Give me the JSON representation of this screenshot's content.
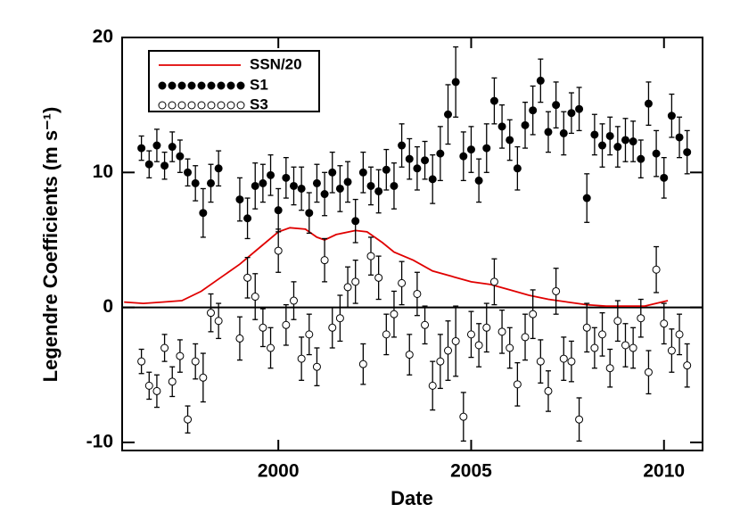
{
  "chart_data": {
    "type": "scatter",
    "xlabel": "Date",
    "ylabel": "Legendre Coefficients (m s⁻¹)",
    "xlim": [
      1995.95,
      2011.0
    ],
    "ylim": [
      -10.6,
      20
    ],
    "xticks": [
      2000,
      2005,
      2010
    ],
    "yticks": [
      -10,
      0,
      10,
      20
    ],
    "zero_line": true,
    "legend": "upper left",
    "line": {
      "name": "SSN/20",
      "color": "#e00000",
      "x": [
        1996.0,
        1996.5,
        1997.0,
        1997.5,
        1998.0,
        1998.5,
        1999.0,
        1999.5,
        2000.0,
        2000.3,
        2000.7,
        2001.0,
        2001.2,
        2001.5,
        2002.0,
        2002.3,
        2002.7,
        2003.0,
        2003.5,
        2004.0,
        2004.5,
        2005.0,
        2005.5,
        2006.0,
        2006.5,
        2007.0,
        2007.5,
        2008.0,
        2008.5,
        2009.0,
        2009.5,
        2010.1
      ],
      "values": [
        0.4,
        0.3,
        0.4,
        0.5,
        1.2,
        2.2,
        3.2,
        4.4,
        5.6,
        5.9,
        5.8,
        5.2,
        5.0,
        5.4,
        5.7,
        5.6,
        4.8,
        4.1,
        3.5,
        2.7,
        2.3,
        1.9,
        1.7,
        1.3,
        0.9,
        0.6,
        0.4,
        0.2,
        0.1,
        0.1,
        0.1,
        0.5
      ]
    },
    "x": [
      1996.45,
      1996.65,
      1996.85,
      1997.05,
      1997.25,
      1997.45,
      1997.65,
      1997.85,
      1998.05,
      1998.25,
      1998.45,
      1999.0,
      1999.2,
      1999.4,
      1999.6,
      1999.8,
      2000.0,
      2000.2,
      2000.4,
      2000.6,
      2000.8,
      2001.0,
      2001.2,
      2001.4,
      2001.6,
      2001.8,
      2002.0,
      2002.2,
      2002.4,
      2002.6,
      2002.8,
      2003.0,
      2003.2,
      2003.4,
      2003.6,
      2003.8,
      2004.0,
      2004.2,
      2004.4,
      2004.6,
      2004.8,
      2005.0,
      2005.2,
      2005.4,
      2005.6,
      2005.8,
      2006.0,
      2006.2,
      2006.4,
      2006.6,
      2006.8,
      2007.0,
      2007.2,
      2007.4,
      2007.6,
      2007.8,
      2008.0,
      2008.2,
      2008.4,
      2008.6,
      2008.8,
      2009.0,
      2009.2,
      2009.4,
      2009.6,
      2009.8,
      2010.0,
      2010.2,
      2010.4,
      2010.6
    ],
    "series": [
      {
        "name": "S1",
        "color": "#000000",
        "filled": true,
        "values": [
          11.8,
          10.6,
          12.0,
          10.5,
          11.9,
          11.2,
          10.0,
          9.2,
          7.0,
          9.2,
          10.3,
          8.0,
          6.6,
          9.0,
          9.2,
          9.8,
          7.2,
          9.6,
          9.0,
          8.8,
          7.0,
          9.2,
          8.4,
          10.0,
          8.8,
          9.3,
          6.4,
          10.0,
          9.0,
          8.6,
          10.2,
          9.0,
          12.0,
          11.0,
          10.3,
          10.9,
          9.5,
          11.4,
          14.3,
          16.7,
          11.2,
          11.7,
          9.4,
          11.8,
          15.3,
          13.4,
          12.4,
          10.3,
          13.5,
          14.6,
          16.8,
          13.0,
          15.0,
          12.9,
          14.4,
          14.7,
          8.1,
          12.8,
          12.0,
          12.7,
          11.9,
          12.4,
          12.3,
          11.0,
          15.1,
          11.4,
          9.6,
          14.2,
          12.6,
          11.5
        ],
        "errors": [
          0.9,
          1.0,
          1.2,
          1.0,
          1.1,
          1.2,
          1.0,
          1.3,
          1.8,
          1.4,
          1.3,
          1.6,
          1.5,
          1.7,
          1.4,
          1.5,
          1.6,
          1.5,
          1.4,
          1.6,
          1.5,
          1.4,
          1.6,
          1.5,
          1.7,
          1.5,
          1.6,
          1.5,
          1.4,
          1.6,
          1.5,
          1.7,
          1.6,
          1.5,
          1.6,
          1.4,
          1.8,
          2.0,
          2.2,
          2.6,
          1.8,
          1.7,
          1.6,
          1.8,
          1.7,
          1.6,
          1.5,
          1.6,
          1.7,
          1.8,
          1.6,
          1.5,
          1.7,
          1.6,
          1.5,
          1.6,
          1.8,
          1.5,
          1.6,
          1.4,
          1.5,
          1.6,
          1.5,
          1.4,
          1.6,
          1.7,
          1.5,
          1.6,
          1.5,
          1.6
        ]
      },
      {
        "name": "S3",
        "color": "#000000",
        "filled": false,
        "values": [
          -4.0,
          -5.8,
          -6.2,
          -3.0,
          -5.5,
          -3.6,
          -8.3,
          -4.0,
          -5.2,
          -0.4,
          -1.0,
          -2.3,
          2.2,
          0.8,
          -1.5,
          -3.0,
          4.2,
          -1.3,
          0.5,
          -3.8,
          -2.0,
          -4.4,
          3.5,
          -1.5,
          -0.8,
          1.5,
          1.9,
          -4.2,
          3.8,
          2.2,
          -2.0,
          -0.5,
          1.8,
          -3.5,
          1.0,
          -1.3,
          -5.8,
          -4.0,
          -3.2,
          -2.5,
          -8.1,
          -2.0,
          -2.8,
          -1.5,
          1.9,
          -1.8,
          -3.0,
          -5.7,
          -2.2,
          -0.5,
          -4.0,
          -6.2,
          1.2,
          -3.8,
          -4.0,
          -8.3,
          -1.5,
          -3.0,
          -2.0,
          -4.5,
          -1.0,
          -2.8,
          -3.0,
          -0.8,
          -4.8,
          2.8,
          -1.2,
          -3.2,
          -2.0,
          -4.3
        ],
        "errors": [
          0.9,
          1.0,
          1.2,
          1.0,
          1.1,
          1.2,
          1.0,
          1.3,
          1.8,
          1.4,
          1.3,
          1.6,
          1.5,
          1.7,
          1.4,
          1.5,
          1.6,
          1.5,
          1.4,
          1.6,
          1.5,
          1.4,
          1.6,
          1.5,
          1.7,
          1.5,
          1.6,
          1.5,
          1.4,
          1.6,
          1.5,
          1.7,
          1.6,
          1.5,
          1.6,
          1.4,
          1.8,
          2.0,
          2.2,
          2.6,
          1.8,
          1.7,
          1.6,
          1.8,
          1.7,
          1.6,
          1.5,
          1.6,
          1.7,
          1.8,
          1.6,
          1.5,
          1.7,
          1.6,
          1.5,
          1.6,
          1.8,
          1.5,
          1.6,
          1.4,
          1.5,
          1.6,
          1.5,
          1.4,
          1.6,
          1.7,
          1.5,
          1.6,
          1.5,
          1.6
        ]
      }
    ]
  }
}
